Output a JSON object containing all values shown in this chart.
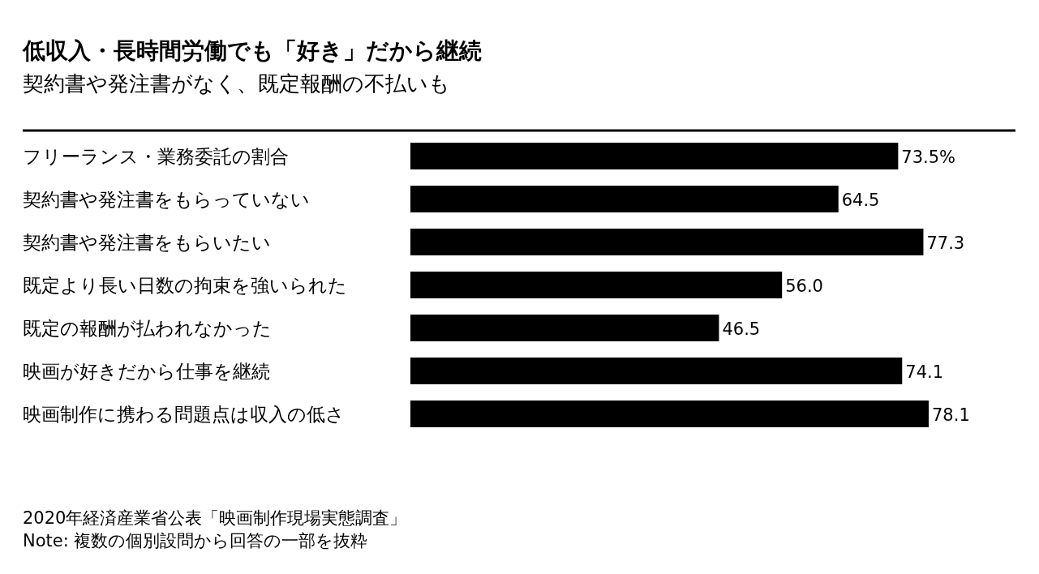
{
  "chart_data": {
    "type": "bar",
    "orientation": "horizontal",
    "title": "低収入・長時間労働でも「好き」だから継続",
    "subtitle": "契約書や発注書がなく、既定報酬の不払いも",
    "categories": [
      "フリーランス・業務委託の割合",
      "契約書や発注書をもらっていない",
      "契約書や発注書をもらいたい",
      "既定より長い日数の拘束を強いられた",
      "既定の報酬が払われなかった",
      "映画が好きだから仕事を継続",
      "映画制作に携わる問題点は収入の低さ"
    ],
    "values": [
      73.5,
      64.5,
      77.3,
      56.0,
      46.5,
      74.1,
      78.1
    ],
    "value_labels": [
      "73.5%",
      "64.5",
      "77.3",
      "56.0",
      "46.5",
      "74.1",
      "78.1"
    ],
    "color": "#000000",
    "annotations": [
      "2020年経済産業省公表「映画制作現場実態調査」",
      "Note: 複数の個別設問から回答の一部を抜粋"
    ]
  }
}
